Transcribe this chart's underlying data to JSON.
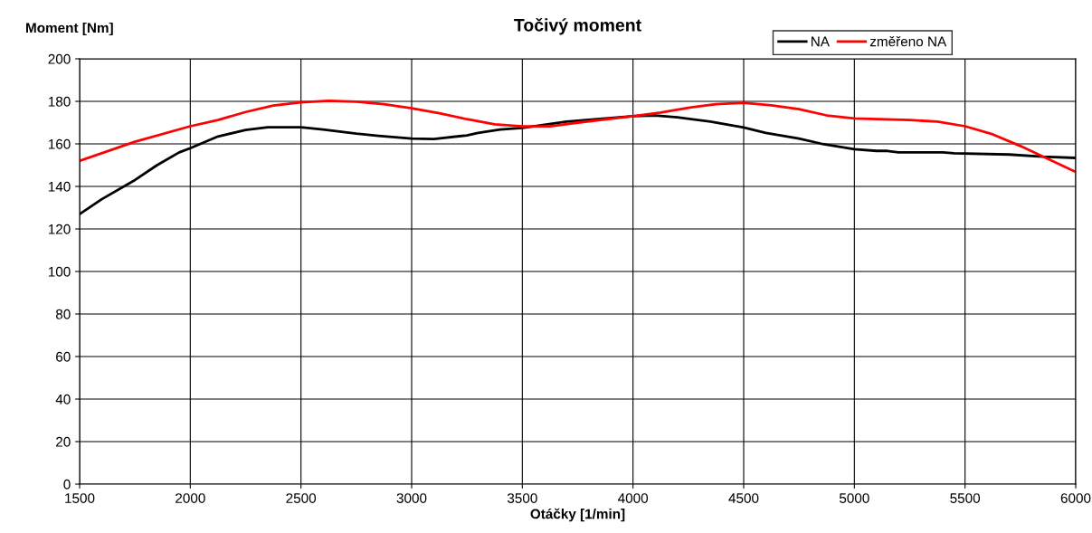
{
  "chart_data": {
    "type": "line",
    "title": "Točivý moment",
    "xlabel": "Otáčky [1/min]",
    "ylabel": "Moment [Nm]",
    "xlim": [
      1500,
      6000
    ],
    "xticks": [
      1500,
      2000,
      2500,
      3000,
      3500,
      4000,
      4500,
      5000,
      5500,
      6000
    ],
    "ylim": [
      0,
      200
    ],
    "yticks": [
      0,
      20,
      40,
      60,
      80,
      100,
      120,
      140,
      160,
      180,
      200
    ],
    "grid": true,
    "legend": "top right",
    "marker": "none",
    "line_style": "solid",
    "series": [
      {
        "name": "NA",
        "color": "#000000",
        "x": [
          1500,
          1600,
          1750,
          1850,
          1950,
          2000,
          2125,
          2250,
          2350,
          2500,
          2600,
          2750,
          2850,
          3000,
          3100,
          3250,
          3300,
          3400,
          3500,
          3600,
          3700,
          4000,
          4100,
          4200,
          4350,
          4500,
          4600,
          4750,
          4850,
          5000,
          5100,
          5150,
          5200,
          5400,
          5450,
          5700,
          5850,
          6000
        ],
        "values": [
          127,
          134,
          143,
          150,
          156,
          158,
          163.5,
          166.5,
          167.8,
          167.8,
          166.8,
          164.8,
          163.8,
          162.5,
          162.3,
          164,
          165.2,
          166.8,
          167.5,
          169,
          170.5,
          173,
          173.4,
          172.5,
          170.5,
          167.7,
          165.2,
          162.5,
          160.1,
          157.5,
          156.7,
          156.7,
          156,
          156,
          155.6,
          155,
          154,
          153.4
        ]
      },
      {
        "name": "změřeno NA",
        "color": "#ff0000",
        "x": [
          1500,
          1750,
          2000,
          2125,
          2250,
          2375,
          2500,
          2625,
          2750,
          2875,
          3000,
          3125,
          3250,
          3375,
          3500,
          3625,
          3750,
          4000,
          4125,
          4250,
          4375,
          4500,
          4625,
          4750,
          4875,
          5000,
          5250,
          5375,
          5500,
          5625,
          5750,
          6000
        ],
        "values": [
          152,
          161,
          168.3,
          171.2,
          175,
          178,
          179.5,
          180.3,
          179.8,
          178.7,
          176.8,
          174.4,
          171.6,
          169.2,
          168.2,
          168.2,
          170,
          173,
          174.7,
          177,
          178.7,
          179.3,
          178.1,
          176.3,
          173.4,
          172,
          171.2,
          170.5,
          168.3,
          164.5,
          159,
          146.8
        ]
      }
    ]
  }
}
